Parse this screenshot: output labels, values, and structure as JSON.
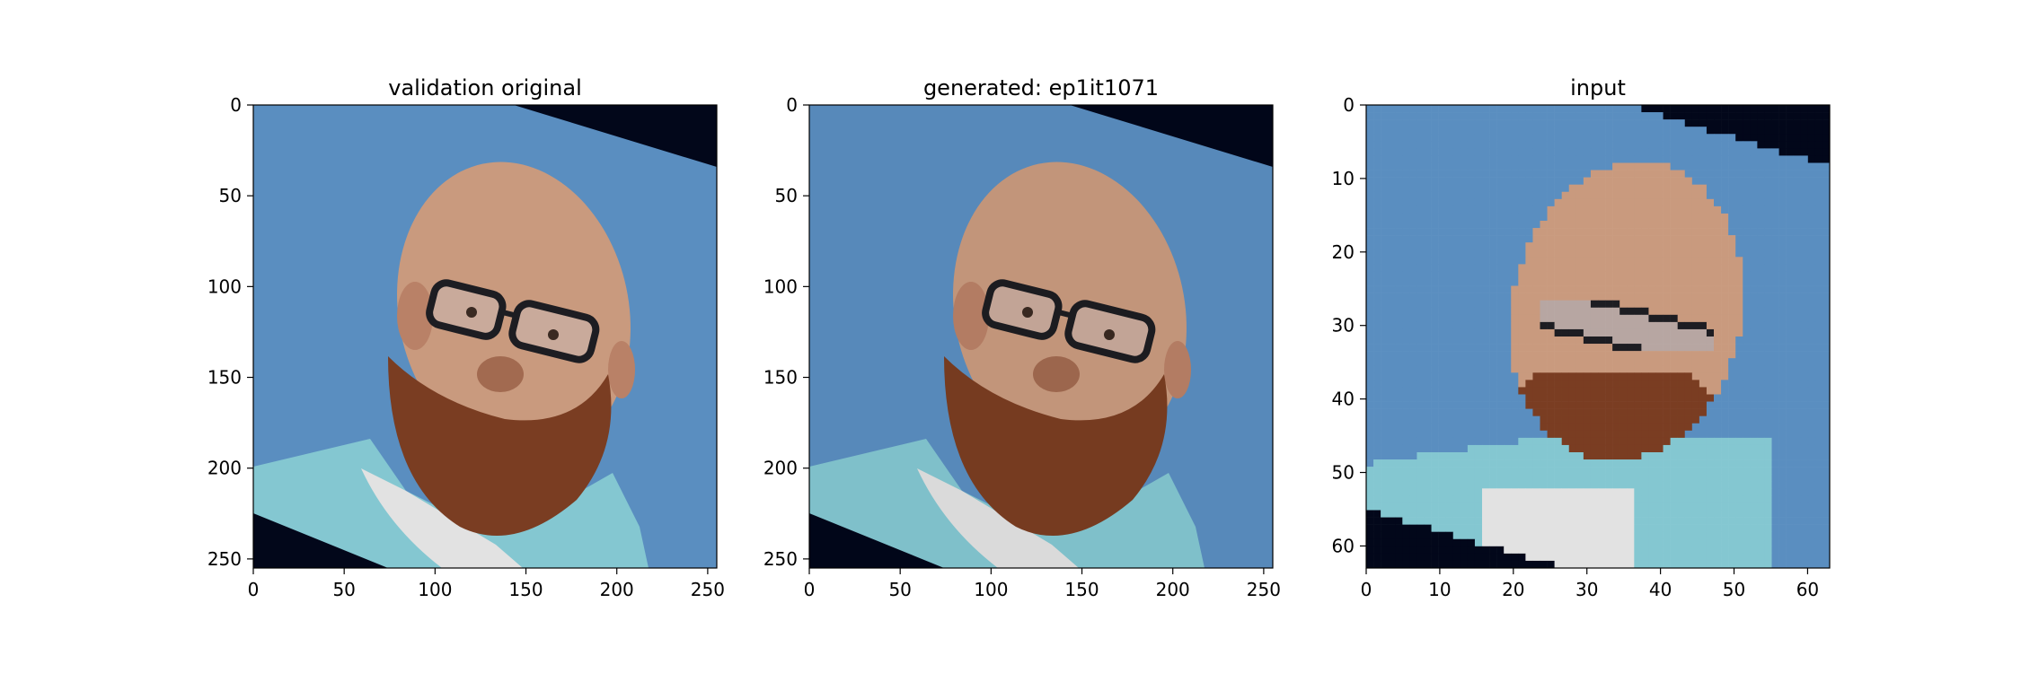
{
  "figure": {
    "panels": [
      {
        "title": "validation original",
        "image_type": "photo",
        "xticks": [
          0,
          50,
          100,
          150,
          200,
          250
        ],
        "yticks": [
          0,
          50,
          100,
          150,
          200,
          250
        ],
        "xlim": [
          0,
          255
        ],
        "ylim": [
          255,
          0
        ]
      },
      {
        "title": "generated: ep1it1071",
        "image_type": "photo",
        "xticks": [
          0,
          50,
          100,
          150,
          200,
          250
        ],
        "yticks": [
          0,
          50,
          100,
          150,
          200,
          250
        ],
        "xlim": [
          0,
          255
        ],
        "ylim": [
          255,
          0
        ]
      },
      {
        "title": "input",
        "image_type": "pixelated",
        "xticks": [
          0,
          10,
          20,
          30,
          40,
          50,
          60
        ],
        "yticks": [
          0,
          10,
          20,
          30,
          40,
          50,
          60
        ],
        "xlim": [
          0,
          63
        ],
        "ylim": [
          63,
          0
        ]
      }
    ],
    "colors": {
      "background_blue": "#5a8ec0",
      "corner_dark": "#02071a",
      "skin": "#c99a7e",
      "beard": "#7a3d22",
      "shirt": "#84c7d1",
      "tshirt": "#e2e2e2",
      "glasses": "#1d1d22"
    }
  },
  "chart_data": [
    {
      "type": "image",
      "title": "validation original",
      "xlim": [
        0,
        255
      ],
      "ylim": [
        255,
        0
      ],
      "xticks": [
        0,
        50,
        100,
        150,
        200,
        250
      ],
      "yticks": [
        0,
        50,
        100,
        150,
        200,
        250
      ]
    },
    {
      "type": "image",
      "title": "generated: ep1it1071",
      "xlim": [
        0,
        255
      ],
      "ylim": [
        255,
        0
      ],
      "xticks": [
        0,
        50,
        100,
        150,
        200,
        250
      ],
      "yticks": [
        0,
        50,
        100,
        150,
        200,
        250
      ]
    },
    {
      "type": "image",
      "title": "input",
      "xlim": [
        0,
        63
      ],
      "ylim": [
        63,
        0
      ],
      "xticks": [
        0,
        10,
        20,
        30,
        40,
        50,
        60
      ],
      "yticks": [
        0,
        10,
        20,
        30,
        40,
        50,
        60
      ]
    }
  ]
}
